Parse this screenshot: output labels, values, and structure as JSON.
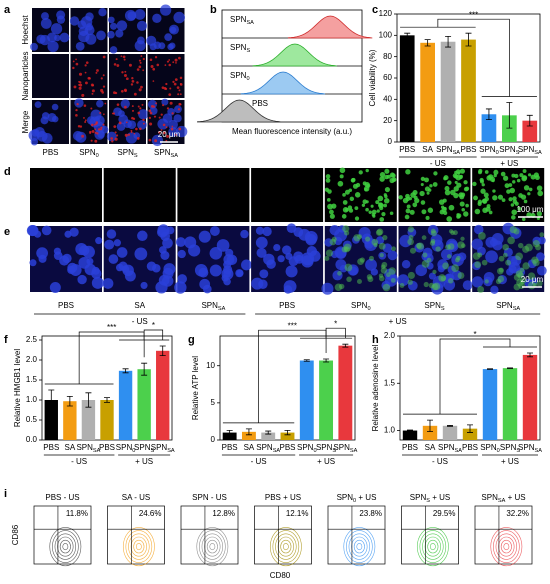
{
  "panel_labels": [
    "a",
    "b",
    "c",
    "d",
    "e",
    "f",
    "g",
    "h",
    "i"
  ],
  "panel_a": {
    "rows": [
      "Hoechst",
      "Nanoparticles",
      "Merge"
    ],
    "columns": [
      "PBS",
      "SPN0",
      "SPNS",
      "SPNSA"
    ],
    "scale_bar": "20 μm"
  },
  "panel_b": {
    "samples": [
      "SPNSA",
      "SPNS",
      "SPN0",
      "PBS"
    ],
    "x_label": "Mean fluorescence intensity (a.u.)"
  },
  "panel_de": {
    "scale_bar_d": "100 μm",
    "scale_bar_e": "20 μm",
    "columns": [
      "PBS",
      "SA",
      "SPNSA",
      "PBS",
      "SPN0",
      "SPNS",
      "SPNSA"
    ],
    "groups": [
      "- US",
      "+ US"
    ]
  },
  "panel_i": {
    "titles": [
      "PBS - US",
      "SA - US",
      "SPN - US",
      "PBS + US",
      "SPN0 + US",
      "SPNS + US",
      "SPNSA + US"
    ],
    "percentages": [
      "11.8%",
      "24.6%",
      "12.8%",
      "12.1%",
      "23.8%",
      "29.5%",
      "32.2%"
    ],
    "y_label": "CD86",
    "x_label": "CD80"
  },
  "chart_data": [
    {
      "type": "bar",
      "y_label": "Cell viability (%)",
      "categories": [
        "PBS",
        "SA",
        "SPNSA",
        "PBS",
        "SPN0",
        "SPNS",
        "SPNSA"
      ],
      "values": [
        100,
        93,
        94,
        96,
        26,
        25,
        20
      ],
      "errors": [
        2,
        3,
        5,
        6,
        5,
        12,
        5
      ],
      "colors": [
        "#000000",
        "#f39c12",
        "#b0b0b0",
        "#c8a000",
        "#2f8ff0",
        "#4cd04c",
        "#e8383d"
      ],
      "groups": [
        "- US",
        "+ US"
      ],
      "annotations": [
        "***"
      ],
      "ylim": [
        0,
        120
      ],
      "yticks": [
        0,
        20,
        40,
        60,
        80,
        100,
        120
      ]
    },
    {
      "type": "bar",
      "y_label": "Relative HMGB1 level",
      "categories": [
        "PBS",
        "SA",
        "SPNSA",
        "PBS",
        "SPN0",
        "SPNS",
        "SPNSA"
      ],
      "values": [
        1.0,
        0.97,
        1.0,
        1.0,
        1.73,
        1.77,
        2.23
      ],
      "errors": [
        0.25,
        0.12,
        0.18,
        0.06,
        0.05,
        0.15,
        0.12
      ],
      "colors": [
        "#000000",
        "#f39c12",
        "#b0b0b0",
        "#c8a000",
        "#2f8ff0",
        "#4cd04c",
        "#e8383d"
      ],
      "groups": [
        "- US",
        "+ US"
      ],
      "annotations": [
        "***",
        "*"
      ],
      "ylim": [
        0,
        2.6
      ],
      "yticks": [
        {
          "value": 0,
          "label": "0.0"
        },
        {
          "value": 0.5,
          "label": "0.5"
        },
        {
          "value": 1,
          "label": "1.0"
        },
        {
          "value": 1.5,
          "label": "1.5"
        },
        {
          "value": 2,
          "label": "2.0"
        },
        {
          "value": 2.5,
          "label": "2.5"
        }
      ]
    },
    {
      "type": "bar",
      "y_label": "Relative ATP level",
      "categories": [
        "PBS",
        "SA",
        "SPNSA",
        "PBS",
        "SPN0",
        "SPNS",
        "SPNSA"
      ],
      "values": [
        1.0,
        1.1,
        1.0,
        1.0,
        10.7,
        10.7,
        12.7
      ],
      "errors": [
        0.3,
        0.4,
        0.2,
        0.3,
        0.1,
        0.2,
        0.2
      ],
      "colors": [
        "#000000",
        "#f39c12",
        "#b0b0b0",
        "#c8a000",
        "#2f8ff0",
        "#4cd04c",
        "#e8383d"
      ],
      "groups": [
        "- US",
        "+ US"
      ],
      "annotations": [
        "***",
        "*"
      ],
      "ylim": [
        0,
        14
      ],
      "yticks": [
        0,
        5,
        10
      ]
    },
    {
      "type": "bar",
      "y_label": "Relative adenosine level",
      "categories": [
        "PBS",
        "SA",
        "SPNSA",
        "PBS",
        "SPN0",
        "SPNS",
        "SPNSA"
      ],
      "values": [
        1.0,
        1.05,
        1.05,
        1.02,
        1.65,
        1.66,
        1.8
      ],
      "errors": [
        0.005,
        0.06,
        0.005,
        0.04,
        0.003,
        0.003,
        0.02
      ],
      "colors": [
        "#000000",
        "#f39c12",
        "#b0b0b0",
        "#c8a000",
        "#2f8ff0",
        "#4cd04c",
        "#e8383d"
      ],
      "groups": [
        "- US",
        "+ US"
      ],
      "annotations": [
        "*"
      ],
      "ylim": [
        0.9,
        2.0
      ],
      "yticks": [
        {
          "value": 1,
          "label": "1.0"
        },
        {
          "value": 1.5,
          "label": "1.5"
        },
        {
          "value": 2,
          "label": "2.0"
        }
      ]
    }
  ]
}
